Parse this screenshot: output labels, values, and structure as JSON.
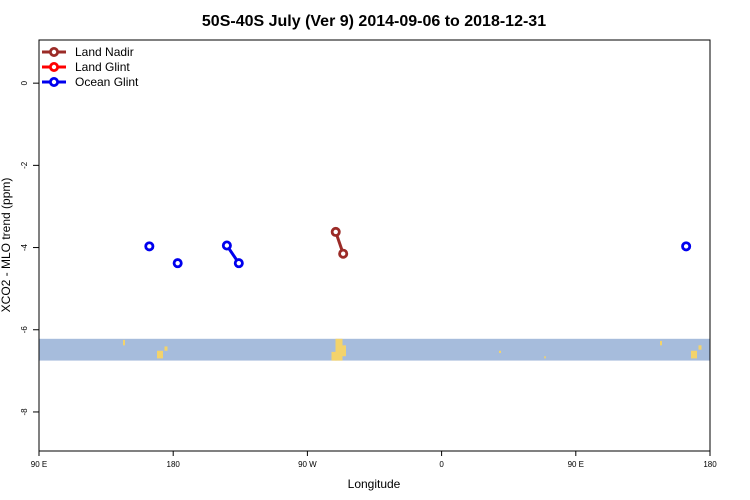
{
  "chart_data": {
    "type": "line",
    "title": "50S-40S July (Ver 9)   2014-09-06 to 2018-12-31",
    "xlabel": "Longitude",
    "ylabel": "XCO2 - MLO trend (ppm)",
    "x_ticks": [
      {
        "value": 90,
        "label": "90 E"
      },
      {
        "value": 180,
        "label": "180"
      },
      {
        "value": 270,
        "label": "90 W"
      },
      {
        "value": 360,
        "label": "0"
      },
      {
        "value": 450,
        "label": "90 E"
      },
      {
        "value": 540,
        "label": "180"
      }
    ],
    "y_ticks": [
      {
        "value": 0,
        "label": "0"
      },
      {
        "value": -2,
        "label": "-2"
      },
      {
        "value": -4,
        "label": "-4"
      },
      {
        "value": -6,
        "label": "-6"
      },
      {
        "value": -8,
        "label": "-8"
      }
    ],
    "xlim": [
      90,
      540
    ],
    "ylim": [
      -8.95,
      1.05
    ],
    "grid": false,
    "legend_position": "top-left",
    "map_strip": {
      "ymin": -6.75,
      "ymax": -6.22,
      "ocean_color": "#a6bcdc",
      "land_color": "#f3d36b"
    },
    "series": [
      {
        "name": "Land Nadir",
        "color": "#9b2b27",
        "segments": [
          [
            [
              289,
              -3.62
            ],
            [
              294,
              -4.15
            ]
          ]
        ]
      },
      {
        "name": "Land Glint",
        "color": "#ff0000",
        "segments": []
      },
      {
        "name": "Ocean Glint",
        "color": "#0000ee",
        "segments": [
          [
            [
              164,
              -3.97
            ]
          ],
          [
            [
              183,
              -4.38
            ]
          ],
          [
            [
              216,
              -3.95
            ],
            [
              224,
              -4.38
            ]
          ],
          [
            [
              524,
              -3.97
            ]
          ]
        ]
      }
    ]
  }
}
